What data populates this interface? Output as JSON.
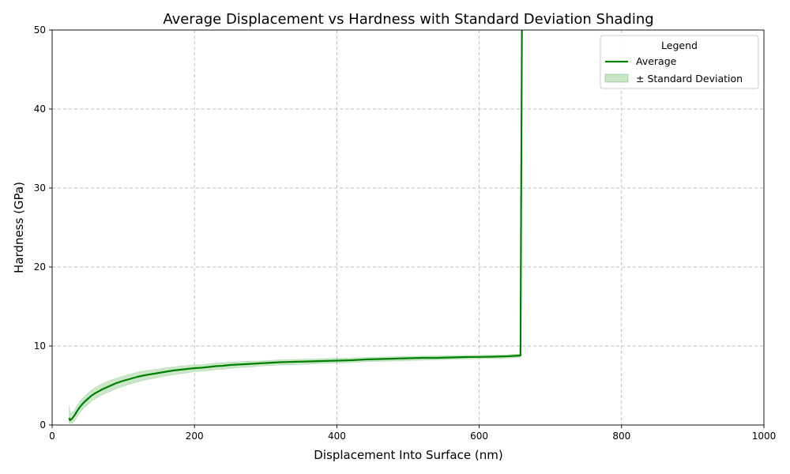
{
  "chart_data": {
    "type": "line",
    "title": "Average Displacement vs Hardness with Standard Deviation Shading",
    "xlabel": "Displacement Into Surface (nm)",
    "ylabel": "Hardness (GPa)",
    "xlim": [
      0,
      1000
    ],
    "ylim": [
      0,
      50
    ],
    "xticks": [
      0,
      200,
      400,
      600,
      800,
      1000
    ],
    "yticks": [
      0,
      10,
      20,
      30,
      40,
      50
    ],
    "grid": true,
    "legend": {
      "title": "Legend",
      "placement": "top-right",
      "entries": [
        "Average",
        "± Standard Deviation"
      ]
    },
    "colors": {
      "average": "#008000",
      "std_fill": "#2ca02c"
    },
    "series": [
      {
        "name": "Average",
        "x": [
          24,
          25,
          28,
          32,
          36,
          40,
          45,
          50,
          55,
          60,
          70,
          80,
          90,
          100,
          110,
          120,
          130,
          140,
          150,
          160,
          170,
          180,
          190,
          200,
          210,
          220,
          230,
          240,
          250,
          260,
          270,
          280,
          290,
          300,
          320,
          340,
          360,
          380,
          400,
          420,
          440,
          460,
          480,
          500,
          520,
          540,
          560,
          580,
          600,
          620,
          640,
          658,
          659,
          660
        ],
        "y": [
          0.9,
          0.6,
          0.8,
          1.3,
          1.9,
          2.4,
          2.9,
          3.3,
          3.7,
          4.0,
          4.5,
          4.9,
          5.3,
          5.6,
          5.85,
          6.1,
          6.3,
          6.45,
          6.6,
          6.75,
          6.9,
          7.0,
          7.1,
          7.2,
          7.25,
          7.35,
          7.45,
          7.5,
          7.6,
          7.65,
          7.7,
          7.75,
          7.8,
          7.85,
          7.95,
          8.0,
          8.05,
          8.1,
          8.15,
          8.2,
          8.3,
          8.35,
          8.4,
          8.45,
          8.5,
          8.5,
          8.55,
          8.6,
          8.62,
          8.65,
          8.7,
          8.8,
          30,
          50
        ]
      }
    ],
    "std_band": {
      "name": "± Standard Deviation",
      "x": [
        24,
        25,
        28,
        32,
        36,
        40,
        45,
        50,
        55,
        60,
        70,
        80,
        90,
        100,
        110,
        120,
        130,
        140,
        150,
        160,
        170,
        180,
        190,
        200,
        210,
        220,
        230,
        240,
        250,
        260,
        270,
        280,
        290,
        300,
        320,
        340,
        360,
        380,
        400,
        420,
        440,
        460,
        480,
        500,
        520,
        540,
        560,
        580,
        600,
        620,
        640,
        658
      ],
      "upper": [
        2.5,
        1.6,
        1.5,
        2.0,
        2.6,
        3.1,
        3.6,
        4.0,
        4.4,
        4.7,
        5.2,
        5.6,
        5.9,
        6.2,
        6.45,
        6.7,
        6.85,
        7.0,
        7.1,
        7.25,
        7.35,
        7.45,
        7.55,
        7.6,
        7.65,
        7.75,
        7.85,
        7.9,
        7.95,
        8.0,
        8.05,
        8.1,
        8.1,
        8.15,
        8.25,
        8.3,
        8.35,
        8.4,
        8.45,
        8.5,
        8.55,
        8.6,
        8.65,
        8.7,
        8.72,
        8.75,
        8.78,
        8.8,
        8.82,
        8.85,
        8.9,
        9.0
      ],
      "lower": [
        0.2,
        0.2,
        0.2,
        0.6,
        1.2,
        1.7,
        2.2,
        2.6,
        3.0,
        3.3,
        3.8,
        4.2,
        4.6,
        4.9,
        5.2,
        5.45,
        5.7,
        5.85,
        6.05,
        6.2,
        6.35,
        6.5,
        6.6,
        6.75,
        6.8,
        6.9,
        7.0,
        7.05,
        7.15,
        7.25,
        7.3,
        7.35,
        7.45,
        7.5,
        7.6,
        7.65,
        7.7,
        7.8,
        7.85,
        7.9,
        8.0,
        8.05,
        8.1,
        8.15,
        8.2,
        8.25,
        8.3,
        8.35,
        8.4,
        8.42,
        8.45,
        8.55
      ]
    }
  }
}
